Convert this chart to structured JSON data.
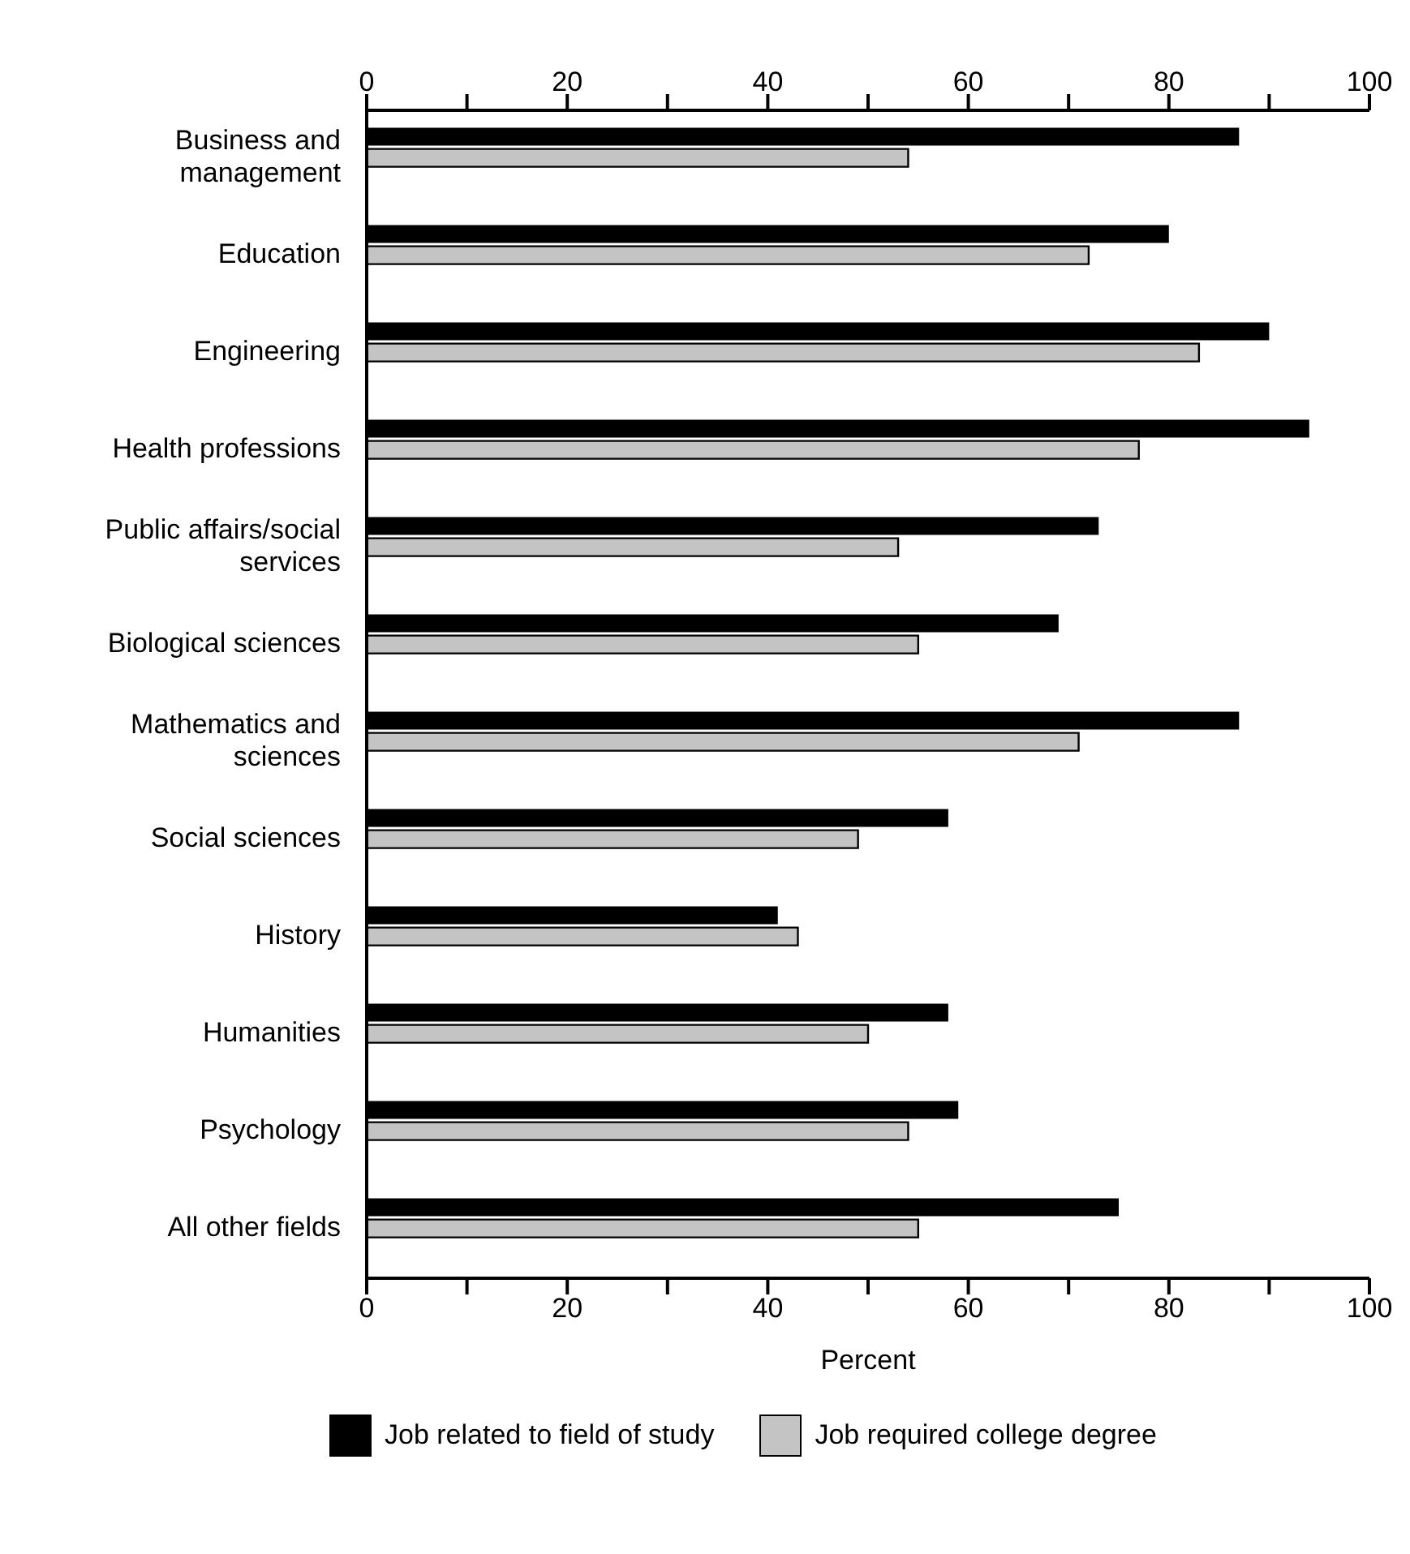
{
  "chart_data": {
    "type": "bar",
    "orientation": "horizontal",
    "xlabel": "Percent",
    "categories": [
      "Business and management",
      "Education",
      "Engineering",
      "Health professions",
      "Public affairs/social services",
      "Biological sciences",
      "Mathematics and sciences",
      "Social sciences",
      "History",
      "Humanities",
      "Psychology",
      "All other fields"
    ],
    "series": [
      {
        "name": "Job related to field of study",
        "color": "#000000",
        "values": [
          87,
          80,
          90,
          94,
          73,
          69,
          87,
          58,
          41,
          58,
          59,
          75
        ]
      },
      {
        "name": "Job required college degree",
        "color": "#c4c4c4",
        "values": [
          54,
          72,
          83,
          77,
          53,
          55,
          71,
          49,
          43,
          50,
          54,
          55
        ]
      }
    ],
    "xlim": [
      0,
      100
    ],
    "xticks": [
      0,
      {
        "value": 10,
        "label": null
      },
      20,
      {
        "value": 30,
        "label": null
      },
      40,
      {
        "value": 50,
        "label": null
      },
      60,
      {
        "value": 70,
        "label": null
      },
      80,
      {
        "value": 90,
        "label": null
      },
      100
    ],
    "x2lim": [
      0,
      100
    ],
    "x2ticks": [
      0,
      {
        "value": 10,
        "label": null
      },
      20,
      {
        "value": 30,
        "label": null
      },
      40,
      {
        "value": 50,
        "label": null
      },
      60,
      {
        "value": 70,
        "label": null
      },
      80,
      {
        "value": 90,
        "label": null
      },
      100
    ],
    "grid": false,
    "legend": "bottom"
  }
}
